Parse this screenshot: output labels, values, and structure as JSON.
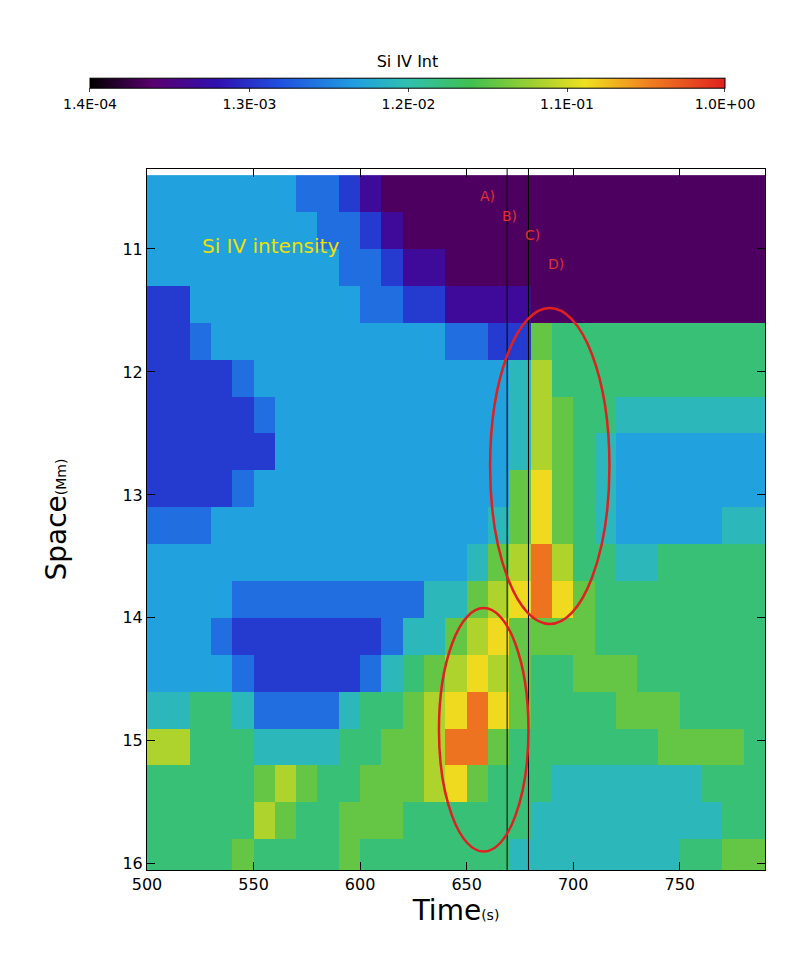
{
  "chart_data": {
    "type": "heatmap",
    "x_label": "Time",
    "x_unit": "(s)",
    "y_label": "Space",
    "y_unit": "(Mm)",
    "xlim": [
      500,
      790
    ],
    "xticks": [
      500,
      550,
      600,
      650,
      700,
      750
    ],
    "ylim": [
      16.05,
      10.35
    ],
    "yticks": [
      11,
      12,
      13,
      14,
      15,
      16
    ],
    "x": [
      505,
      515,
      525,
      535,
      545,
      555,
      565,
      575,
      585,
      595,
      605,
      615,
      625,
      635,
      645,
      655,
      665,
      675,
      685,
      695,
      705,
      715,
      725,
      735,
      745,
      755,
      765,
      775,
      785
    ],
    "y": [
      10.55,
      10.85,
      11.15,
      11.45,
      11.75,
      12.05,
      12.35,
      12.65,
      12.95,
      13.25,
      13.55,
      13.85,
      14.15,
      14.45,
      14.75,
      15.05,
      15.35,
      15.65,
      15.95
    ],
    "cells": [
      [
        0.006,
        0.006,
        0.006,
        0.006,
        0.006,
        0.006,
        0.006,
        0.003,
        0.003,
        0.0015,
        0.0006,
        0.0003,
        0.0003,
        0.0003,
        0.0003,
        0.0003,
        0.0003,
        0.0003,
        0.0003,
        0.0003,
        0.0003,
        0.0003,
        0.0003,
        0.0003,
        0.0003,
        0.0003,
        0.0003,
        0.0003,
        0.0003
      ],
      [
        0.006,
        0.006,
        0.006,
        0.006,
        0.006,
        0.006,
        0.006,
        0.006,
        0.003,
        0.003,
        0.0015,
        0.0006,
        0.0003,
        0.0003,
        0.0003,
        0.0003,
        0.0003,
        0.0003,
        0.0003,
        0.0003,
        0.0003,
        0.0003,
        0.0003,
        0.0003,
        0.0003,
        0.0003,
        0.0003,
        0.0003,
        0.0003
      ],
      [
        0.006,
        0.006,
        0.006,
        0.006,
        0.006,
        0.006,
        0.006,
        0.006,
        0.006,
        0.003,
        0.003,
        0.0015,
        0.0006,
        0.0006,
        0.0003,
        0.0003,
        0.0003,
        0.0003,
        0.0003,
        0.0003,
        0.0003,
        0.0003,
        0.0003,
        0.0003,
        0.0003,
        0.0003,
        0.0003,
        0.0003,
        0.0003
      ],
      [
        0.0015,
        0.0015,
        0.006,
        0.006,
        0.006,
        0.006,
        0.006,
        0.006,
        0.006,
        0.006,
        0.003,
        0.003,
        0.0015,
        0.0015,
        0.0006,
        0.0006,
        0.0006,
        0.0006,
        0.0003,
        0.0003,
        0.0003,
        0.0003,
        0.0003,
        0.0003,
        0.0003,
        0.0003,
        0.0003,
        0.0003,
        0.0003
      ],
      [
        0.0015,
        0.0015,
        0.003,
        0.006,
        0.006,
        0.006,
        0.006,
        0.006,
        0.006,
        0.006,
        0.006,
        0.006,
        0.006,
        0.006,
        0.003,
        0.003,
        0.0015,
        0.0015,
        0.04,
        0.02,
        0.02,
        0.02,
        0.02,
        0.02,
        0.02,
        0.02,
        0.02,
        0.02,
        0.02
      ],
      [
        0.0015,
        0.0015,
        0.0015,
        0.0015,
        0.003,
        0.006,
        0.006,
        0.006,
        0.006,
        0.006,
        0.006,
        0.006,
        0.006,
        0.006,
        0.006,
        0.006,
        0.006,
        0.01,
        0.08,
        0.02,
        0.02,
        0.02,
        0.02,
        0.02,
        0.02,
        0.02,
        0.02,
        0.02,
        0.02
      ],
      [
        0.0015,
        0.0015,
        0.0015,
        0.0015,
        0.0015,
        0.003,
        0.006,
        0.006,
        0.006,
        0.006,
        0.006,
        0.006,
        0.006,
        0.006,
        0.006,
        0.006,
        0.006,
        0.01,
        0.08,
        0.04,
        0.02,
        0.02,
        0.01,
        0.01,
        0.01,
        0.01,
        0.01,
        0.01,
        0.01
      ],
      [
        0.0015,
        0.0015,
        0.0015,
        0.0015,
        0.0015,
        0.0015,
        0.006,
        0.006,
        0.006,
        0.006,
        0.006,
        0.006,
        0.006,
        0.006,
        0.006,
        0.006,
        0.006,
        0.01,
        0.08,
        0.04,
        0.02,
        0.01,
        0.006,
        0.006,
        0.006,
        0.006,
        0.006,
        0.006,
        0.006
      ],
      [
        0.0015,
        0.0015,
        0.0015,
        0.0015,
        0.003,
        0.006,
        0.006,
        0.006,
        0.006,
        0.006,
        0.006,
        0.006,
        0.006,
        0.006,
        0.006,
        0.006,
        0.006,
        0.04,
        0.15,
        0.04,
        0.02,
        0.01,
        0.006,
        0.006,
        0.006,
        0.006,
        0.006,
        0.006,
        0.006
      ],
      [
        0.003,
        0.003,
        0.003,
        0.006,
        0.006,
        0.006,
        0.006,
        0.006,
        0.006,
        0.006,
        0.006,
        0.006,
        0.006,
        0.006,
        0.006,
        0.006,
        0.01,
        0.04,
        0.15,
        0.04,
        0.02,
        0.01,
        0.006,
        0.006,
        0.006,
        0.006,
        0.006,
        0.01,
        0.01
      ],
      [
        0.006,
        0.006,
        0.006,
        0.006,
        0.006,
        0.006,
        0.006,
        0.006,
        0.006,
        0.006,
        0.006,
        0.006,
        0.006,
        0.006,
        0.006,
        0.01,
        0.04,
        0.08,
        0.4,
        0.08,
        0.02,
        0.02,
        0.01,
        0.01,
        0.02,
        0.02,
        0.02,
        0.02,
        0.02
      ],
      [
        0.006,
        0.006,
        0.006,
        0.006,
        0.003,
        0.003,
        0.003,
        0.003,
        0.003,
        0.003,
        0.003,
        0.003,
        0.003,
        0.01,
        0.01,
        0.04,
        0.08,
        0.15,
        0.4,
        0.15,
        0.04,
        0.02,
        0.02,
        0.02,
        0.02,
        0.02,
        0.02,
        0.02,
        0.02
      ],
      [
        0.006,
        0.006,
        0.006,
        0.003,
        0.0015,
        0.0015,
        0.0015,
        0.0015,
        0.0015,
        0.0015,
        0.0015,
        0.003,
        0.01,
        0.01,
        0.04,
        0.08,
        0.15,
        0.04,
        0.04,
        0.04,
        0.04,
        0.02,
        0.02,
        0.02,
        0.02,
        0.02,
        0.02,
        0.02,
        0.02
      ],
      [
        0.006,
        0.006,
        0.006,
        0.006,
        0.003,
        0.0015,
        0.0015,
        0.0015,
        0.0015,
        0.0015,
        0.003,
        0.01,
        0.02,
        0.04,
        0.08,
        0.15,
        0.08,
        0.04,
        0.02,
        0.02,
        0.04,
        0.04,
        0.04,
        0.02,
        0.02,
        0.02,
        0.02,
        0.02,
        0.02
      ],
      [
        0.01,
        0.01,
        0.02,
        0.02,
        0.01,
        0.003,
        0.003,
        0.003,
        0.003,
        0.01,
        0.02,
        0.02,
        0.04,
        0.08,
        0.15,
        0.4,
        0.15,
        0.04,
        0.02,
        0.02,
        0.02,
        0.02,
        0.04,
        0.04,
        0.04,
        0.02,
        0.02,
        0.02,
        0.02
      ],
      [
        0.08,
        0.08,
        0.02,
        0.02,
        0.02,
        0.01,
        0.01,
        0.01,
        0.01,
        0.02,
        0.02,
        0.04,
        0.04,
        0.08,
        0.4,
        0.4,
        0.04,
        0.02,
        0.02,
        0.02,
        0.02,
        0.02,
        0.02,
        0.02,
        0.04,
        0.04,
        0.04,
        0.04,
        0.02
      ],
      [
        0.02,
        0.02,
        0.02,
        0.02,
        0.02,
        0.04,
        0.08,
        0.04,
        0.02,
        0.02,
        0.04,
        0.04,
        0.04,
        0.08,
        0.15,
        0.04,
        0.02,
        0.02,
        0.02,
        0.01,
        0.01,
        0.01,
        0.01,
        0.01,
        0.01,
        0.01,
        0.02,
        0.02,
        0.02
      ],
      [
        0.02,
        0.02,
        0.02,
        0.02,
        0.02,
        0.08,
        0.04,
        0.02,
        0.02,
        0.04,
        0.04,
        0.04,
        0.02,
        0.02,
        0.02,
        0.02,
        0.02,
        0.02,
        0.01,
        0.01,
        0.01,
        0.01,
        0.01,
        0.01,
        0.01,
        0.01,
        0.01,
        0.02,
        0.02
      ],
      [
        0.02,
        0.02,
        0.02,
        0.02,
        0.04,
        0.02,
        0.02,
        0.02,
        0.02,
        0.04,
        0.02,
        0.02,
        0.02,
        0.02,
        0.02,
        0.02,
        0.02,
        0.01,
        0.01,
        0.01,
        0.01,
        0.01,
        0.01,
        0.01,
        0.01,
        0.02,
        0.02,
        0.04,
        0.04
      ]
    ],
    "colorbar": {
      "title": "Si IV Int",
      "range": [
        0.00014,
        1
      ],
      "ticks": [
        {
          "value": 0.00014,
          "label": "1.4E-04"
        },
        {
          "value": 0.0013,
          "label": "1.3E-03"
        },
        {
          "value": 0.012,
          "label": "1.2E-02"
        },
        {
          "value": 0.11,
          "label": "1.1E-01"
        },
        {
          "value": 1,
          "label": "1.0E+00"
        }
      ]
    },
    "vlines": [
      669,
      679
    ],
    "ellipses": [
      {
        "x0": 661,
        "x1": 717,
        "y0": 11.48,
        "y1": 14.05,
        "color": "#e02020"
      },
      {
        "x0": 637,
        "x1": 679,
        "y0": 13.92,
        "y1": 15.9,
        "color": "#e02020"
      }
    ],
    "annotations": [
      {
        "text": "Si IV intensity",
        "x": 525,
        "y": 10.98,
        "color": "#f0e000"
      },
      {
        "text": "A)",
        "x": 660,
        "y": 10.57,
        "color": "#e03030"
      },
      {
        "text": "B)",
        "x": 670,
        "y": 10.73,
        "color": "#e03030"
      },
      {
        "text": "C)",
        "x": 681,
        "y": 10.89,
        "color": "#e03030"
      },
      {
        "text": "D)",
        "x": 692,
        "y": 11.12,
        "color": "#e03030"
      }
    ]
  }
}
